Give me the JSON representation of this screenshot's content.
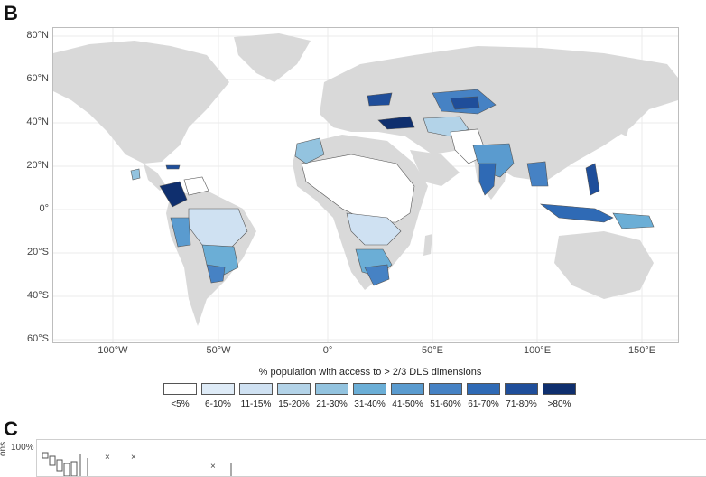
{
  "panels": {
    "b_letter": "B",
    "c_letter": "C"
  },
  "map": {
    "lat_labels": [
      "80°N",
      "60°N",
      "40°N",
      "20°N",
      "0°",
      "20°S",
      "40°S",
      "60°S"
    ],
    "lon_labels": [
      "100°W",
      "50°W",
      "0°",
      "50°E",
      "100°E",
      "150°E"
    ],
    "land_color": "#d9d9d9",
    "grid_color": "#ebebeb"
  },
  "legend": {
    "title": "% population with access to > 2/3 DLS dimensions",
    "items": [
      {
        "label": "<5%",
        "color": "#ffffff"
      },
      {
        "label": "6-10%",
        "color": "#deebf7"
      },
      {
        "label": "11-15%",
        "color": "#cfe1f2"
      },
      {
        "label": "15-20%",
        "color": "#b3d3e8"
      },
      {
        "label": "21-30%",
        "color": "#93c3df"
      },
      {
        "label": "31-40%",
        "color": "#6baed6"
      },
      {
        "label": "41-50%",
        "color": "#5a9bcf"
      },
      {
        "label": "51-60%",
        "color": "#4682c4"
      },
      {
        "label": "61-70%",
        "color": "#2f6ab5"
      },
      {
        "label": "71-80%",
        "color": "#1f4e9a"
      },
      {
        "label": ">80%",
        "color": "#0f2f6e"
      }
    ]
  },
  "panel_c": {
    "y_tick": "100%",
    "y_label_fragment": "ons",
    "markers": [
      "×",
      "×",
      "×"
    ]
  }
}
